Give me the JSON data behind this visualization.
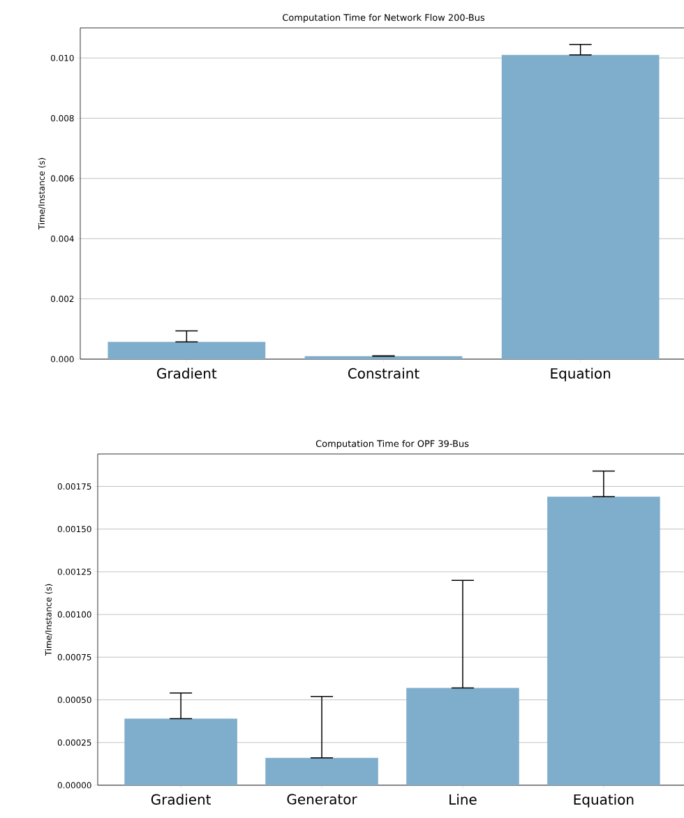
{
  "chart_data": [
    {
      "type": "bar",
      "title": "Computation Time for Network Flow 200-Bus",
      "ylabel": "Time/Instance (s)",
      "categories": [
        "Gradient",
        "Constraint",
        "Equation"
      ],
      "values": [
        0.00057,
        0.0001,
        0.0101
      ],
      "errors": [
        [
          0.00057,
          0.00094
        ],
        [
          0.0001,
          0.00011
        ],
        [
          0.0101,
          0.01045
        ]
      ],
      "color": "#7fadcc",
      "ylim": [
        0,
        0.011
      ],
      "yticks": [
        {
          "value": 0,
          "label": "0.000"
        },
        {
          "value": 0.002,
          "label": "0.002"
        },
        {
          "value": 0.004,
          "label": "0.004"
        },
        {
          "value": 0.006,
          "label": "0.006"
        },
        {
          "value": 0.008,
          "label": "0.008"
        },
        {
          "value": 0.01,
          "label": "0.010"
        }
      ],
      "grid": "y"
    },
    {
      "type": "bar",
      "title": "Computation Time for OPF 39-Bus",
      "ylabel": "Time/Instance (s)",
      "categories": [
        "Gradient",
        "Generator",
        "Line",
        "Equation"
      ],
      "values": [
        0.00039,
        0.00016,
        0.00057,
        0.00169
      ],
      "errors": [
        [
          0.00039,
          0.00054
        ],
        [
          0.00016,
          0.00052
        ],
        [
          0.00057,
          0.0012
        ],
        [
          0.00169,
          0.00184
        ]
      ],
      "color": "#7fadcc",
      "ylim": [
        0,
        0.00194
      ],
      "yticks": [
        {
          "value": 0,
          "label": "0.00000"
        },
        {
          "value": 0.00025,
          "label": "0.00025"
        },
        {
          "value": 0.0005,
          "label": "0.00050"
        },
        {
          "value": 0.00075,
          "label": "0.00075"
        },
        {
          "value": 0.001,
          "label": "0.00100"
        },
        {
          "value": 0.00125,
          "label": "0.00125"
        },
        {
          "value": 0.0015,
          "label": "0.00150"
        },
        {
          "value": 0.00175,
          "label": "0.00175"
        }
      ],
      "grid": "y"
    }
  ]
}
